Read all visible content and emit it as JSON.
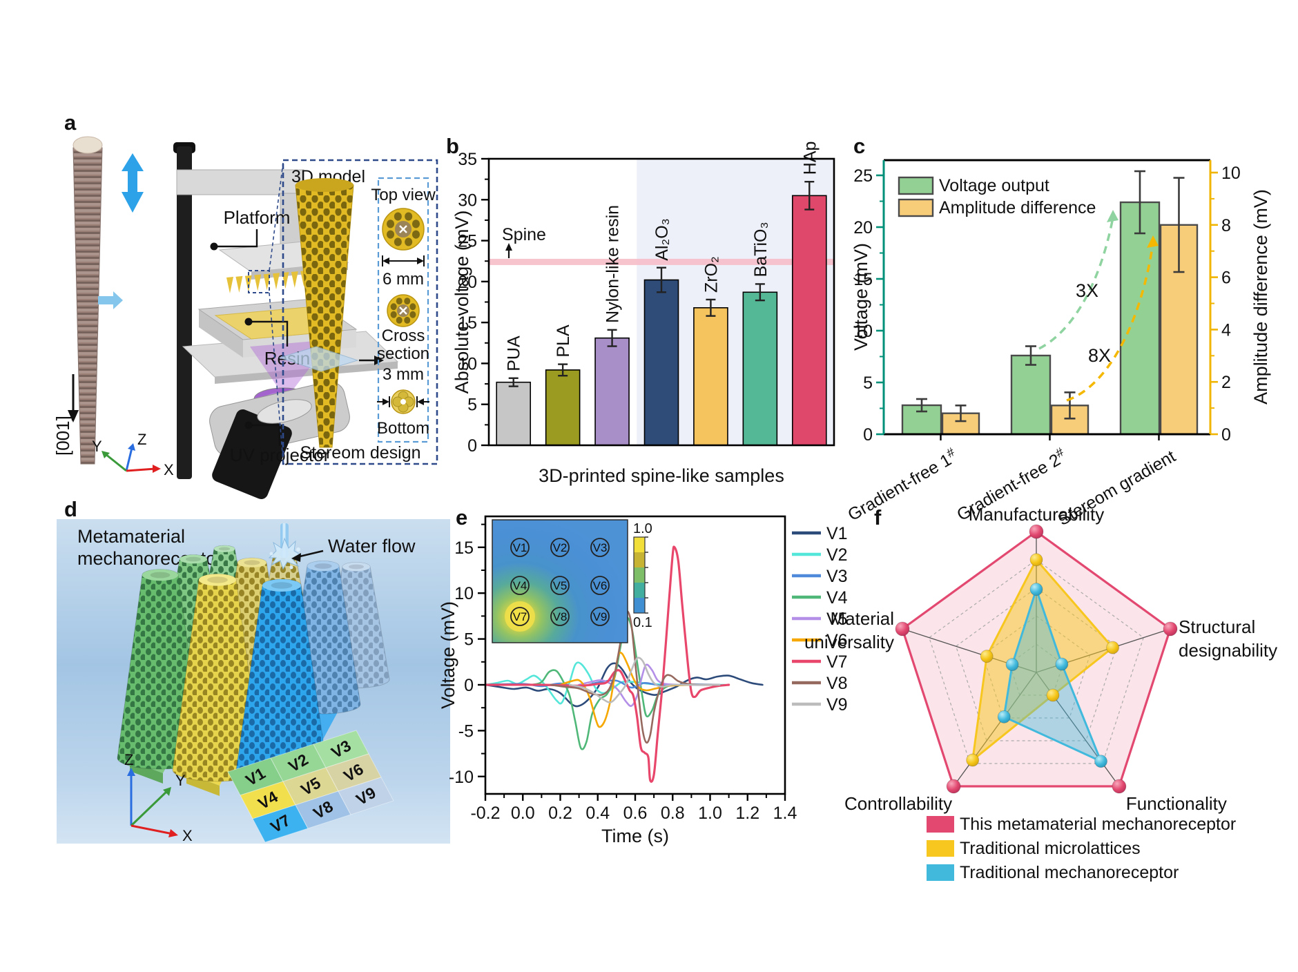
{
  "figure": {
    "panel_labels": {
      "a": "a",
      "b": "b",
      "c": "c",
      "d": "d",
      "e": "e",
      "f": "f"
    }
  },
  "panel_a": {
    "crystal_direction": "[001]",
    "platform": "Platform",
    "resin": "Resin",
    "uv_projector": "UV projector",
    "axes": {
      "x": "X",
      "y": "Y",
      "z": "Z"
    },
    "inset": {
      "model": "3D model",
      "top_view": "Top view",
      "top_diameter": "6 mm",
      "cross_section_lines": [
        "Cross",
        "section"
      ],
      "bottom_diameter": "3 mm",
      "bottom": "Bottom",
      "caption": "Stereom design"
    }
  },
  "panel_d": {
    "title_lines": [
      "Metamaterial",
      "mechanoreceptor"
    ],
    "water_flow": "Water flow",
    "axes": {
      "x": "X",
      "y": "Y",
      "z": "Z"
    },
    "tiles": [
      "V1",
      "V2",
      "V3",
      "V4",
      "V5",
      "V6",
      "V7",
      "V8",
      "V9"
    ]
  },
  "chart_data": {
    "b": {
      "type": "bar",
      "ylabel": "Absolute voltage (mV)",
      "xlabel": "3D-printed spine-like samples",
      "categories": [
        "PUA",
        "PLA",
        "Nylon-like resin",
        "Al₂O₃",
        "ZrO₂",
        "BaTiO₃",
        "HAp"
      ],
      "values": [
        7.7,
        9.2,
        13.1,
        20.2,
        16.8,
        18.7,
        30.5
      ],
      "errors": [
        0.5,
        0.7,
        1.0,
        1.5,
        1.0,
        1.0,
        1.7
      ],
      "bar_colors": [
        "#c6c6c6",
        "#9b9b21",
        "#a98fc7",
        "#2f4b77",
        "#f6c45f",
        "#54b795",
        "#e0486b"
      ],
      "ylim": [
        0,
        35
      ],
      "yticks": [
        0,
        5,
        10,
        15,
        20,
        25,
        30,
        35
      ],
      "reference": {
        "label": "Spine",
        "value": 22.4,
        "band_color": "#f6bcc8"
      },
      "shaded_from_index": 3,
      "shaded_color": "#eef0f9"
    },
    "c": {
      "type": "grouped-bar",
      "categories": [
        "Gradient-free 1#",
        "Gradient-free 2#",
        "Stereom gradient"
      ],
      "series": [
        {
          "name": "Voltage output",
          "axis": "left",
          "color": "#93d093",
          "values": [
            2.8,
            7.6,
            22.4
          ],
          "errors": [
            0.6,
            0.9,
            3.0
          ]
        },
        {
          "name": "Amplitude difference",
          "axis": "right",
          "color": "#f8cd79",
          "values": [
            0.8,
            1.1,
            8.0
          ],
          "errors": [
            0.3,
            0.5,
            1.8
          ]
        }
      ],
      "left_axis": {
        "label": "Voltage (mV)",
        "color": "#009079",
        "ticks": [
          0,
          5,
          10,
          15,
          20,
          25
        ],
        "lim": [
          0,
          26.5
        ]
      },
      "right_axis": {
        "label": "Amplitude difference (mV)",
        "color": "#f0b402",
        "ticks": [
          0,
          2,
          4,
          6,
          8,
          10
        ],
        "lim": [
          0,
          10.5
        ]
      },
      "annotations": [
        {
          "text": "3X",
          "color": "#2fa089",
          "curve_color": "#8fd4a0"
        },
        {
          "text": "8X",
          "color": "#f5a829",
          "curve_color": "#f5b802"
        }
      ]
    },
    "e": {
      "type": "line",
      "xlabel": "Time (s)",
      "ylabel": "Voltage (mV)",
      "xlim": [
        -0.2,
        1.4
      ],
      "xticks": [
        "-0.2",
        "0.0",
        "0.2",
        "0.4",
        "0.6",
        "0.8",
        "1.0",
        "1.2",
        "1.4"
      ],
      "ylim": [
        -11.9,
        18.4
      ],
      "yticks": [
        -10,
        -5,
        0,
        5,
        10,
        15
      ],
      "series": [
        {
          "name": "V1",
          "color": "#2d4b7a",
          "points": [
            [
              -0.2,
              0
            ],
            [
              -0.12,
              -0.25
            ],
            [
              -0.05,
              -0.45
            ],
            [
              0.02,
              -0.3
            ],
            [
              0.08,
              -0.65
            ],
            [
              0.14,
              -0.45
            ],
            [
              0.2,
              -0.9
            ],
            [
              0.26,
              -2.1
            ],
            [
              0.3,
              -2.3
            ],
            [
              0.35,
              -1.6
            ],
            [
              0.4,
              -0.3
            ],
            [
              0.45,
              1.8
            ],
            [
              0.49,
              2.35
            ],
            [
              0.53,
              1.7
            ],
            [
              0.57,
              0.4
            ],
            [
              0.61,
              -0.4
            ],
            [
              0.66,
              -0.9
            ],
            [
              0.71,
              -1.1
            ],
            [
              0.76,
              -0.7
            ],
            [
              0.82,
              -0.2
            ],
            [
              0.88,
              0.5
            ],
            [
              0.93,
              0.8
            ],
            [
              0.98,
              0.6
            ],
            [
              1.04,
              0.9
            ],
            [
              1.1,
              1.0
            ],
            [
              1.16,
              0.6
            ],
            [
              1.22,
              0.2
            ],
            [
              1.28,
              0
            ]
          ]
        },
        {
          "name": "V2",
          "color": "#55e6da",
          "points": [
            [
              -0.2,
              0
            ],
            [
              -0.14,
              0.2
            ],
            [
              -0.08,
              0.45
            ],
            [
              -0.03,
              0.1
            ],
            [
              0.02,
              0.6
            ],
            [
              0.06,
              1.0
            ],
            [
              0.1,
              0.4
            ],
            [
              0.14,
              -0.6
            ],
            [
              0.18,
              -1.7
            ],
            [
              0.21,
              -1.9
            ],
            [
              0.25,
              0.3
            ],
            [
              0.28,
              2.2
            ],
            [
              0.31,
              2.3
            ],
            [
              0.35,
              1.2
            ],
            [
              0.39,
              -0.4
            ],
            [
              0.43,
              -0.9
            ],
            [
              0.48,
              -0.4
            ],
            [
              0.53,
              0.3
            ],
            [
              0.6,
              0.3
            ],
            [
              0.68,
              0.1
            ],
            [
              0.8,
              0
            ],
            [
              1.0,
              0
            ],
            [
              1.08,
              0
            ]
          ]
        },
        {
          "name": "V3",
          "color": "#4f89d9",
          "points": [
            [
              -0.2,
              0
            ],
            [
              0.0,
              0.1
            ],
            [
              0.1,
              -0.15
            ],
            [
              0.2,
              0.15
            ],
            [
              0.3,
              -0.2
            ],
            [
              0.4,
              0.25
            ],
            [
              0.5,
              0.45
            ],
            [
              0.58,
              -0.3
            ],
            [
              0.65,
              0.2
            ],
            [
              0.75,
              -0.1
            ],
            [
              0.9,
              0.05
            ],
            [
              1.05,
              0
            ]
          ]
        },
        {
          "name": "V4",
          "color": "#4fb878",
          "points": [
            [
              0.05,
              0
            ],
            [
              0.1,
              0.3
            ],
            [
              0.14,
              1.4
            ],
            [
              0.18,
              1.5
            ],
            [
              0.22,
              0.2
            ],
            [
              0.25,
              -1.2
            ],
            [
              0.28,
              -4.0
            ],
            [
              0.31,
              -6.9
            ],
            [
              0.34,
              -6.2
            ],
            [
              0.37,
              -3.2
            ],
            [
              0.41,
              -1.6
            ],
            [
              0.45,
              -1.0
            ],
            [
              0.49,
              0.8
            ],
            [
              0.52,
              4.0
            ],
            [
              0.55,
              7.2
            ],
            [
              0.58,
              6.3
            ],
            [
              0.61,
              2.5
            ],
            [
              0.64,
              -1.5
            ],
            [
              0.66,
              -3.4
            ],
            [
              0.69,
              -2.8
            ],
            [
              0.72,
              -1.2
            ],
            [
              0.76,
              -0.3
            ],
            [
              0.82,
              0
            ],
            [
              1.0,
              0
            ]
          ]
        },
        {
          "name": "V5",
          "color": "#b48fe8",
          "points": [
            [
              0.3,
              0
            ],
            [
              0.36,
              0.3
            ],
            [
              0.42,
              0.5
            ],
            [
              0.47,
              0.1
            ],
            [
              0.51,
              -0.6
            ],
            [
              0.55,
              -1.8
            ],
            [
              0.58,
              -2.3
            ],
            [
              0.61,
              -1.2
            ],
            [
              0.64,
              1.2
            ],
            [
              0.66,
              2.2
            ],
            [
              0.69,
              1.6
            ],
            [
              0.72,
              0.5
            ],
            [
              0.76,
              0.1
            ],
            [
              0.85,
              0
            ],
            [
              1.0,
              0
            ]
          ]
        },
        {
          "name": "V6",
          "color": "#f6a800",
          "points": [
            [
              0.2,
              0
            ],
            [
              0.26,
              0.4
            ],
            [
              0.3,
              0.5
            ],
            [
              0.33,
              -0.2
            ],
            [
              0.36,
              -1.6
            ],
            [
              0.39,
              -3.8
            ],
            [
              0.41,
              -4.6
            ],
            [
              0.44,
              -3.8
            ],
            [
              0.47,
              -1.5
            ],
            [
              0.49,
              1.0
            ],
            [
              0.51,
              3.2
            ],
            [
              0.53,
              3.4
            ],
            [
              0.56,
              2.2
            ],
            [
              0.59,
              0.7
            ],
            [
              0.62,
              -0.3
            ],
            [
              0.66,
              -0.6
            ],
            [
              0.71,
              -0.4
            ],
            [
              0.78,
              -0.1
            ],
            [
              0.9,
              0
            ]
          ]
        },
        {
          "name": "V7",
          "color": "#e8476b",
          "points": [
            [
              -0.2,
              0
            ],
            [
              0.1,
              0
            ],
            [
              0.3,
              -0.1
            ],
            [
              0.4,
              0.1
            ],
            [
              0.45,
              0.3
            ],
            [
              0.49,
              1.4
            ],
            [
              0.52,
              1.5
            ],
            [
              0.55,
              0.3
            ],
            [
              0.57,
              -0.6
            ],
            [
              0.59,
              -1.2
            ],
            [
              0.61,
              -3.5
            ],
            [
              0.63,
              -6.8
            ],
            [
              0.65,
              -7.4
            ],
            [
              0.67,
              -7.9
            ],
            [
              0.68,
              -10.4
            ],
            [
              0.7,
              -9.8
            ],
            [
              0.72,
              -5.5
            ],
            [
              0.75,
              1.0
            ],
            [
              0.78,
              9.0
            ],
            [
              0.8,
              14.2
            ],
            [
              0.81,
              15.0
            ],
            [
              0.83,
              13.5
            ],
            [
              0.85,
              9.0
            ],
            [
              0.88,
              2.5
            ],
            [
              0.9,
              -0.8
            ],
            [
              0.92,
              -1.3
            ],
            [
              0.95,
              -0.6
            ],
            [
              1.0,
              -0.3
            ],
            [
              1.05,
              -0.1
            ],
            [
              1.1,
              0
            ]
          ]
        },
        {
          "name": "V8",
          "color": "#96695f",
          "points": [
            [
              0.15,
              0
            ],
            [
              0.22,
              -0.2
            ],
            [
              0.3,
              -0.4
            ],
            [
              0.36,
              -0.9
            ],
            [
              0.42,
              -1.1
            ],
            [
              0.46,
              -0.5
            ],
            [
              0.49,
              1.2
            ],
            [
              0.52,
              4.5
            ],
            [
              0.54,
              7.0
            ],
            [
              0.56,
              8.0
            ],
            [
              0.58,
              6.5
            ],
            [
              0.6,
              2.5
            ],
            [
              0.62,
              -1.5
            ],
            [
              0.64,
              -5.0
            ],
            [
              0.66,
              -6.3
            ],
            [
              0.68,
              -5.5
            ],
            [
              0.7,
              -3.0
            ],
            [
              0.73,
              -0.5
            ],
            [
              0.76,
              0.9
            ],
            [
              0.79,
              1.0
            ],
            [
              0.83,
              0.4
            ],
            [
              0.88,
              0.1
            ],
            [
              0.95,
              0
            ],
            [
              1.05,
              0
            ]
          ]
        },
        {
          "name": "V9",
          "color": "#bcbcbc",
          "points": [
            [
              0.25,
              0
            ],
            [
              0.32,
              -0.3
            ],
            [
              0.38,
              -0.9
            ],
            [
              0.43,
              -1.6
            ],
            [
              0.47,
              -1.9
            ],
            [
              0.51,
              -1.1
            ],
            [
              0.55,
              0
            ],
            [
              0.58,
              1.6
            ],
            [
              0.61,
              2.9
            ],
            [
              0.64,
              2.6
            ],
            [
              0.67,
              1.2
            ],
            [
              0.7,
              0.2
            ],
            [
              0.74,
              -0.2
            ],
            [
              0.8,
              0
            ],
            [
              0.9,
              0
            ],
            [
              1.05,
              0
            ]
          ]
        }
      ],
      "inset": {
        "labels": [
          "V1",
          "V2",
          "V3",
          "V4",
          "V5",
          "V6",
          "V7",
          "V8",
          "V9"
        ],
        "colorbar_max": "1.0",
        "colorbar_min": "0.1",
        "colorbar_colors": [
          "#f2df3a",
          "#c8b434",
          "#7fbe68",
          "#42aea0",
          "#3f8fd2"
        ]
      }
    },
    "f": {
      "type": "radar",
      "axes": [
        "Manufacturability",
        "Structural designability",
        "Functionality",
        "Controllability",
        "Material universality"
      ],
      "max": 1,
      "rings": [
        0.2,
        0.4,
        0.6,
        0.8
      ],
      "series": [
        {
          "name": "This metamaterial mechanoreceptor",
          "color": "#e24870",
          "fill_opacity": 0.15,
          "values": [
            1,
            1,
            1,
            1,
            1
          ]
        },
        {
          "name": "Traditional microlattices",
          "color": "#f7c71f",
          "fill_opacity": 0.5,
          "values": [
            0.8,
            0.57,
            0.2,
            0.77,
            0.37
          ]
        },
        {
          "name": "Traditional mechanoreceptor",
          "color": "#41b9dc",
          "fill_opacity": 0.4,
          "values": [
            0.59,
            0.19,
            0.78,
            0.39,
            0.18
          ]
        }
      ]
    }
  }
}
